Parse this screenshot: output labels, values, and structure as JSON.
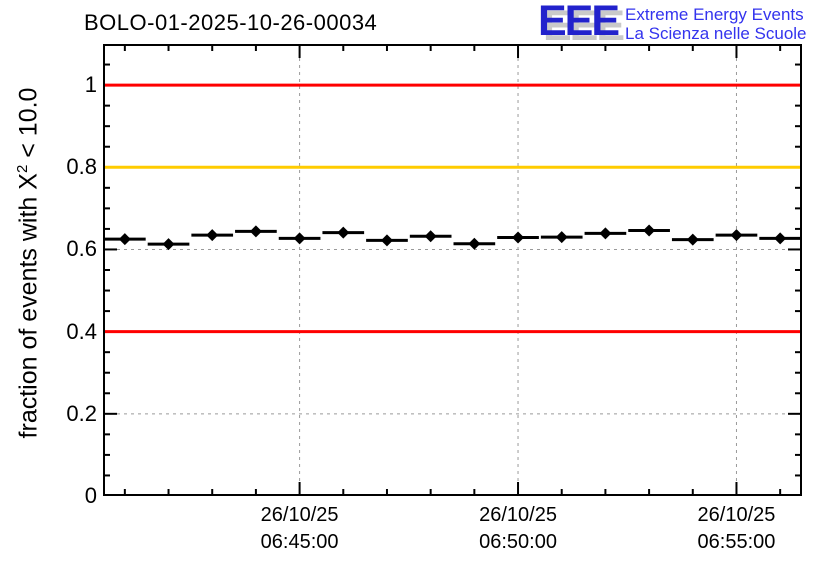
{
  "title": "BOLO-01-2025-10-26-00034",
  "logo": {
    "acronym": "EEE",
    "line1": "Extreme Energy Events",
    "line2": "La Scienza nelle Scuole"
  },
  "y_axis": {
    "title_prefix": "fraction of events with X",
    "title_sup": "2",
    "title_suffix": " < 10.0",
    "tick_labels": [
      "1",
      "0.8",
      "0.6",
      "0.4",
      "0.2",
      "0"
    ],
    "tick_values": [
      1.0,
      0.8,
      0.6,
      0.4,
      0.2,
      0
    ]
  },
  "x_axis": {
    "date": "26/10/25",
    "times": [
      "06:45:00",
      "06:50:00",
      "06:55:00"
    ]
  },
  "colors": {
    "threshold_red": "#ff0000",
    "threshold_orange": "#ffcc00",
    "grid": "#9a9a9a",
    "axis": "#000000",
    "marker": "#000000",
    "logo_blue": "#2222cc",
    "logo_text_blue": "#3333ee",
    "logo_shadow": "#c9c9c9"
  },
  "chart_data": {
    "type": "scatter",
    "title": "BOLO-01-2025-10-26-00034",
    "xlabel": "",
    "ylabel": "fraction of events with X^2 < 10.0",
    "ylim": [
      0,
      1.1
    ],
    "x_start": "26/10/25 06:40:30",
    "x_end": "26/10/25 06:56:30",
    "bin_width_minutes": 1,
    "x_times": [
      "06:41:00",
      "06:42:00",
      "06:43:00",
      "06:44:00",
      "06:45:00",
      "06:46:00",
      "06:47:00",
      "06:48:00",
      "06:49:00",
      "06:50:00",
      "06:51:00",
      "06:52:00",
      "06:53:00",
      "06:54:00",
      "06:55:00",
      "06:56:00"
    ],
    "values": [
      0.625,
      0.613,
      0.635,
      0.644,
      0.627,
      0.641,
      0.622,
      0.632,
      0.614,
      0.629,
      0.63,
      0.639,
      0.646,
      0.624,
      0.635,
      0.627
    ],
    "x_error_minutes": 0.5,
    "x_major_tick_times": [
      "06:45:00",
      "06:50:00",
      "06:55:00"
    ],
    "x_major_tick_indices": [
      4,
      9,
      14
    ],
    "x_tick_labels": [
      [
        "26/10/25",
        "06:45:00"
      ],
      [
        "26/10/25",
        "06:50:00"
      ],
      [
        "26/10/25",
        "06:55:00"
      ]
    ],
    "y_major_ticks": [
      0,
      0.2,
      0.4,
      0.6,
      0.8,
      1.0
    ],
    "y_minor_step": 0.05,
    "grid": "dashed gray at major ticks, both axes",
    "legend": "none",
    "thresholds": [
      {
        "y": 1.0,
        "color": "#ff0000"
      },
      {
        "y": 0.8,
        "color": "#ffcc00"
      },
      {
        "y": 0.4,
        "color": "#ff0000"
      }
    ],
    "marker_style": "filled black diamond with horizontal bin-width error bars"
  }
}
